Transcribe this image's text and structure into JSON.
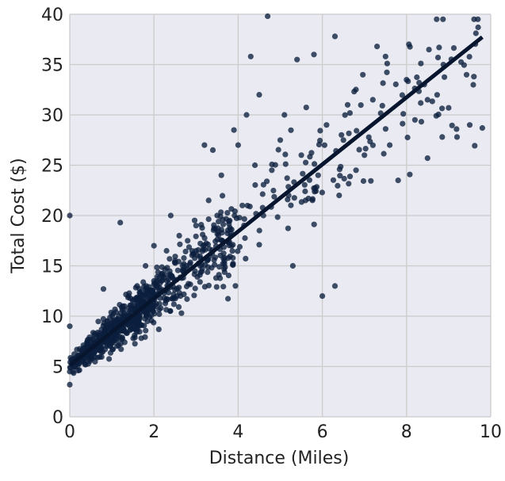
{
  "chart_data": {
    "type": "scatter",
    "title": "",
    "xlabel": "Distance (Miles)",
    "ylabel": "Total Cost ($)",
    "xlim": [
      0,
      10
    ],
    "ylim": [
      0,
      40
    ],
    "x_ticks": [
      "0",
      "2",
      "4",
      "6",
      "8",
      "10"
    ],
    "y_ticks": [
      "0",
      "5",
      "10",
      "15",
      "20",
      "25",
      "30",
      "35",
      "40"
    ],
    "grid": true,
    "background": "#eaeaf2",
    "point_color": "#0b1f3d",
    "line_color": "#07162e",
    "point_count_note": "",
    "fit_line": {
      "intercept": 5.1,
      "slope": 3.33
    },
    "series": [
      {
        "kind": "scatter",
        "points": [
          [
            0.0,
            20.0
          ],
          [
            0.0,
            9.0
          ],
          [
            0.0,
            3.2
          ],
          [
            0.0,
            4.5
          ],
          [
            0.1,
            5.0
          ],
          [
            0.2,
            4.6
          ],
          [
            0.3,
            5.5
          ],
          [
            0.4,
            6.2
          ],
          [
            0.5,
            7.0
          ],
          [
            0.5,
            5.8
          ],
          [
            0.6,
            6.5
          ],
          [
            0.7,
            8.0
          ],
          [
            0.8,
            12.7
          ],
          [
            0.8,
            7.4
          ],
          [
            0.9,
            9.5
          ],
          [
            1.0,
            8.6
          ],
          [
            1.1,
            10.4
          ],
          [
            1.2,
            9.0
          ],
          [
            1.2,
            19.3
          ],
          [
            1.3,
            11.0
          ],
          [
            1.4,
            12.0
          ],
          [
            1.5,
            10.0
          ],
          [
            1.6,
            13.0
          ],
          [
            1.7,
            11.5
          ],
          [
            1.8,
            15.0
          ],
          [
            1.9,
            12.5
          ],
          [
            2.0,
            17.0
          ],
          [
            2.0,
            13.5
          ],
          [
            2.2,
            14.0
          ],
          [
            2.3,
            16.5
          ],
          [
            2.4,
            20.0
          ],
          [
            2.5,
            15.5
          ],
          [
            2.6,
            18.0
          ],
          [
            2.8,
            17.5
          ],
          [
            3.0,
            19.0
          ],
          [
            3.1,
            15.0
          ],
          [
            3.2,
            27.0
          ],
          [
            3.3,
            21.5
          ],
          [
            3.4,
            26.5
          ],
          [
            3.5,
            20.0
          ],
          [
            3.6,
            24.0
          ],
          [
            3.8,
            19.5
          ],
          [
            3.9,
            28.5
          ],
          [
            4.0,
            27.0
          ],
          [
            4.1,
            21.0
          ],
          [
            4.2,
            30.0
          ],
          [
            4.3,
            35.8
          ],
          [
            4.4,
            25.0
          ],
          [
            4.5,
            32.0
          ],
          [
            4.6,
            20.0
          ],
          [
            4.7,
            39.8
          ],
          [
            4.8,
            24.5
          ],
          [
            5.0,
            27.5
          ],
          [
            5.1,
            30.0
          ],
          [
            5.2,
            22.0
          ],
          [
            5.3,
            15.0
          ],
          [
            5.4,
            35.5
          ],
          [
            5.5,
            26.0
          ],
          [
            5.6,
            21.5
          ],
          [
            5.8,
            36.0
          ],
          [
            5.9,
            24.0
          ],
          [
            6.0,
            12.0
          ],
          [
            6.1,
            29.0
          ],
          [
            6.3,
            13.0
          ],
          [
            6.3,
            37.8
          ],
          [
            6.4,
            22.0
          ],
          [
            6.5,
            27.5
          ],
          [
            6.6,
            31.0
          ],
          [
            6.8,
            24.5
          ],
          [
            7.0,
            26.0
          ],
          [
            7.2,
            31.5
          ],
          [
            7.3,
            36.8
          ],
          [
            7.5,
            35.8
          ],
          [
            7.6,
            27.0
          ],
          [
            7.8,
            23.5
          ],
          [
            8.0,
            33.5
          ],
          [
            8.2,
            29.5
          ],
          [
            8.3,
            33.2
          ],
          [
            8.5,
            31.5
          ],
          [
            8.5,
            25.7
          ],
          [
            9.0,
            30.7
          ],
          [
            9.2,
            27.8
          ],
          [
            9.5,
            29.0
          ],
          [
            9.6,
            33.8
          ],
          [
            9.8,
            28.7
          ],
          [
            9.7,
            38.7
          ]
        ]
      }
    ]
  }
}
